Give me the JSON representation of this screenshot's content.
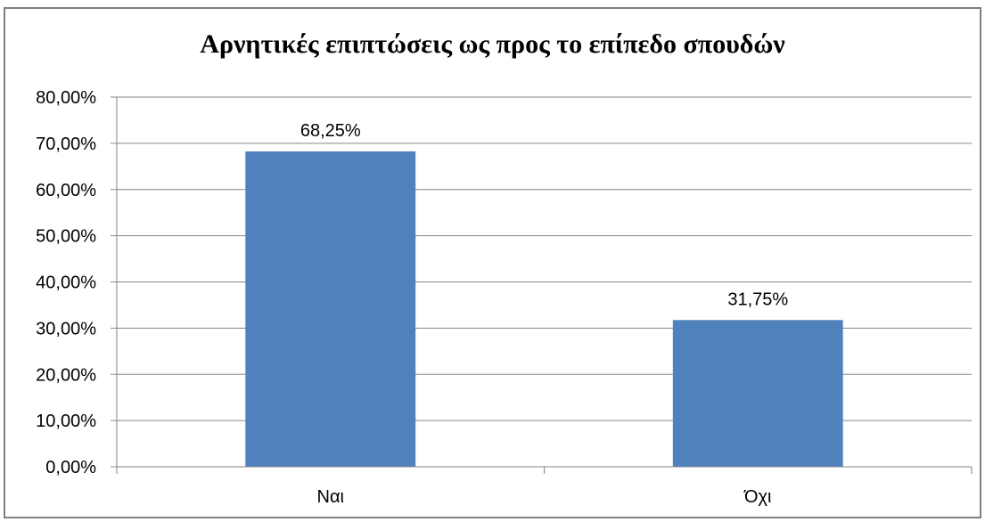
{
  "chart_data": {
    "type": "bar",
    "title": "Αρνητικές επιπτώσεις ως προς το επίπεδο σπουδών",
    "categories": [
      "Ναι",
      "Όχι"
    ],
    "values": [
      68.25,
      31.75
    ],
    "data_labels": [
      "68,25%",
      "31,75%"
    ],
    "y_ticks": [
      "0,00%",
      "10,00%",
      "20,00%",
      "30,00%",
      "40,00%",
      "50,00%",
      "60,00%",
      "70,00%",
      "80,00%"
    ],
    "ylim": [
      0,
      80
    ],
    "y_step": 10,
    "grid": true,
    "legend": "none",
    "colors": {
      "bar": "#4f81bd",
      "grid": "#868686",
      "axis": "#868686",
      "text": "#000000"
    }
  }
}
